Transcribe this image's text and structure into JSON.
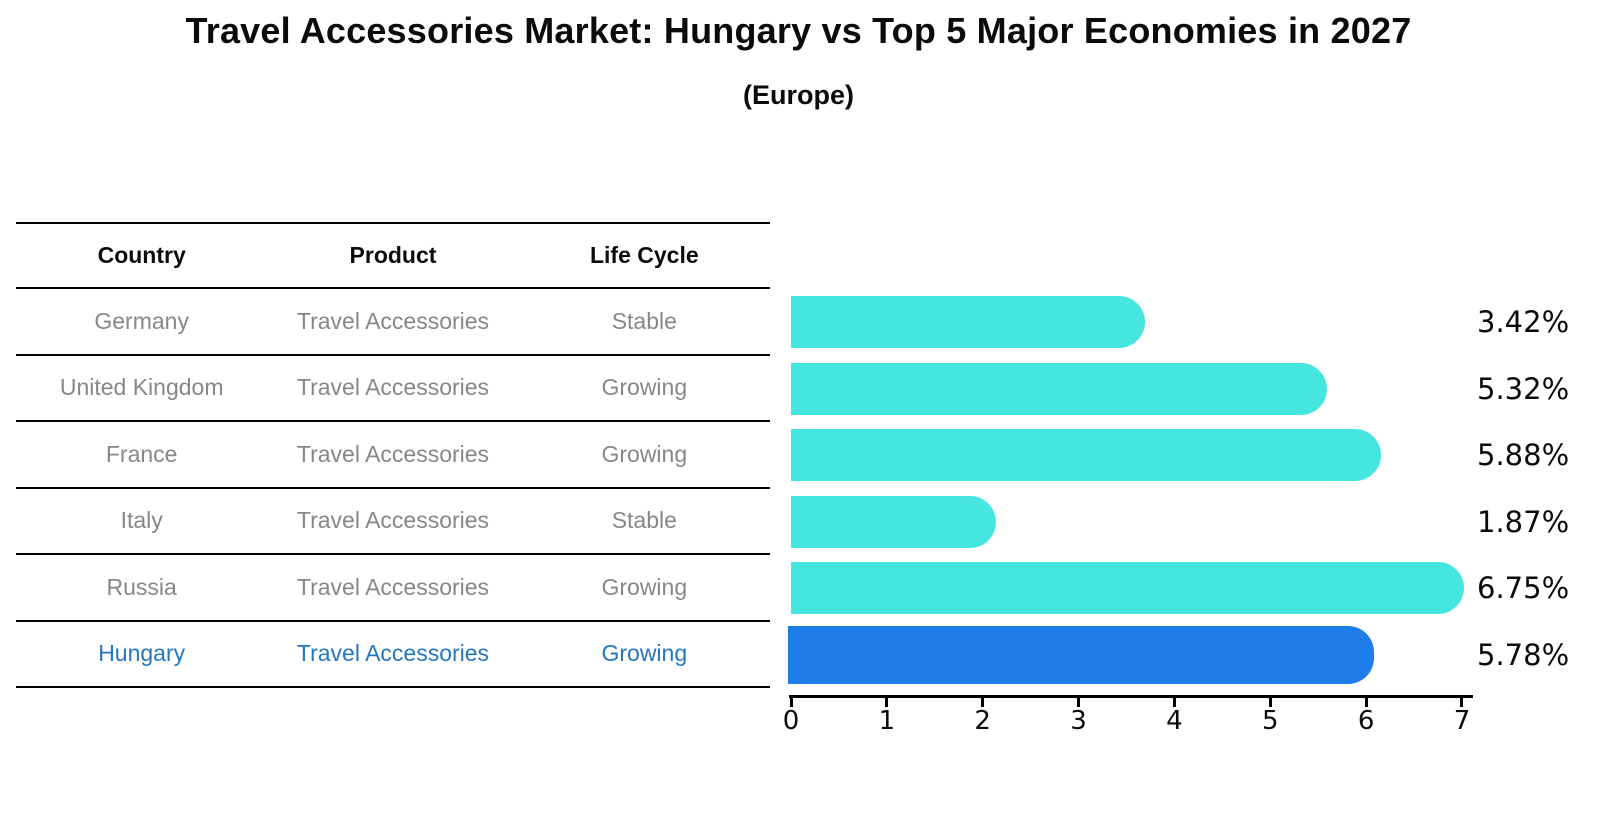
{
  "title": "Travel Accessories Market: Hungary vs Top 5 Major Economies in 2027",
  "subtitle": "(Europe)",
  "table": {
    "headers": [
      "Country",
      "Product",
      "Life Cycle"
    ],
    "row_text_color": "#878787",
    "highlight_text_color": "#2577BE",
    "rows": [
      {
        "country": "Germany",
        "product": "Travel Accessories",
        "life_cycle": "Stable",
        "highlight": false
      },
      {
        "country": "United Kingdom",
        "product": "Travel Accessories",
        "life_cycle": "Growing",
        "highlight": false
      },
      {
        "country": "France",
        "product": "Travel Accessories",
        "life_cycle": "Growing",
        "highlight": false
      },
      {
        "country": "Italy",
        "product": "Travel Accessories",
        "life_cycle": "Stable",
        "highlight": false
      },
      {
        "country": "Russia",
        "product": "Travel Accessories",
        "life_cycle": "Growing",
        "highlight": false
      },
      {
        "country": "Hungary",
        "product": "Travel Accessories",
        "life_cycle": "Growing",
        "highlight": true
      }
    ]
  },
  "chart_data": {
    "type": "bar",
    "orientation": "horizontal",
    "title": "Travel Accessories Market: Hungary vs Top 5 Major Economies in 2027 (Europe)",
    "categories": [
      "Germany",
      "United Kingdom",
      "France",
      "Italy",
      "Russia",
      "Hungary"
    ],
    "values": [
      3.42,
      5.32,
      5.88,
      1.87,
      6.75,
      5.78
    ],
    "value_labels": [
      "3.42%",
      "5.32%",
      "5.88%",
      "1.87%",
      "6.75%",
      "5.78%"
    ],
    "xlim": [
      0,
      7
    ],
    "x_ticks": [
      0,
      1,
      2,
      3,
      4,
      5,
      6,
      7
    ],
    "grid": false,
    "legend_position": "none",
    "bar_color": "#46E5E0",
    "highlight_bar_color": "#1E7DE8",
    "highlight_index": 5
  }
}
